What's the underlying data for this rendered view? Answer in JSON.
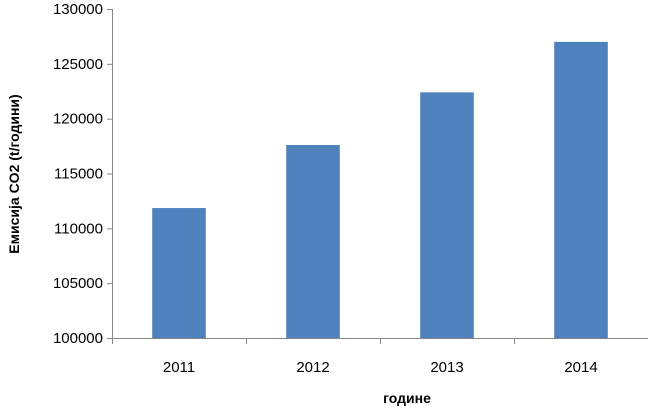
{
  "chart_data": {
    "type": "bar",
    "title": "",
    "xlabel": "године",
    "ylabel": "Емисија CO2  (t/години)",
    "categories": [
      "2011",
      "2012",
      "2013",
      "2014"
    ],
    "values": [
      111850,
      117600,
      122400,
      127000
    ],
    "ylim": [
      100000,
      130000
    ],
    "yticks": [
      "100000",
      "105000",
      "110000",
      "115000",
      "120000",
      "125000",
      "130000"
    ],
    "grid": false,
    "legend": "none",
    "bar_color": "#4F81BD",
    "axis_color": "#868686"
  }
}
